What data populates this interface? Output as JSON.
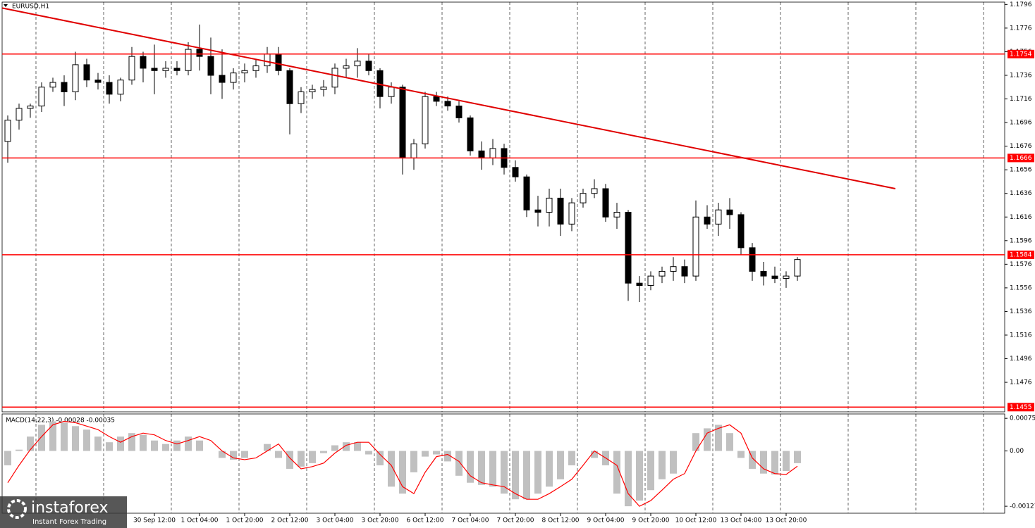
{
  "chart_data": [
    {
      "type": "candlestick",
      "title": "EURUSD,H1",
      "categories": [
        null,
        null,
        null,
        null,
        null,
        null,
        null,
        null,
        null,
        null,
        null,
        null,
        null,
        "30 Sep 12:00",
        null,
        null,
        null,
        "1 Oct 04:00",
        null,
        null,
        null,
        "1 Oct 20:00",
        null,
        null,
        null,
        "2 Oct 12:00",
        null,
        null,
        null,
        "3 Oct 04:00",
        null,
        null,
        null,
        "3 Oct 20:00",
        null,
        null,
        null,
        "6 Oct 12:00",
        null,
        null,
        null,
        "7 Oct 04:00",
        null,
        null,
        null,
        "7 Oct 20:00",
        null,
        null,
        null,
        "8 Oct 12:00",
        null,
        null,
        null,
        "9 Oct 04:00",
        null,
        null,
        null,
        "9 Oct 20:00",
        null,
        null,
        null,
        "10 Oct 12:00",
        null,
        null,
        null,
        "13 Oct 04:00",
        null,
        null,
        null,
        "13 Oct 20:00",
        null
      ],
      "ohlc": [
        [
          1.168,
          1.1702,
          1.1662,
          1.1698
        ],
        [
          1.1698,
          1.1712,
          1.169,
          1.1708
        ],
        [
          1.1708,
          1.1712,
          1.17,
          1.171
        ],
        [
          1.171,
          1.173,
          1.1705,
          1.1726
        ],
        [
          1.1726,
          1.1734,
          1.1722,
          1.173
        ],
        [
          1.173,
          1.1736,
          1.171,
          1.1722
        ],
        [
          1.1722,
          1.1756,
          1.1715,
          1.1745
        ],
        [
          1.1745,
          1.175,
          1.1726,
          1.1732
        ],
        [
          1.1732,
          1.1738,
          1.1724,
          1.173
        ],
        [
          1.173,
          1.1736,
          1.1712,
          1.172
        ],
        [
          1.172,
          1.1734,
          1.1714,
          1.1732
        ],
        [
          1.1732,
          1.176,
          1.1728,
          1.1752
        ],
        [
          1.1752,
          1.1756,
          1.173,
          1.1742
        ],
        [
          1.1742,
          1.1762,
          1.172,
          1.174
        ],
        [
          1.174,
          1.1748,
          1.1734,
          1.1742
        ],
        [
          1.1742,
          1.1748,
          1.1736,
          1.174
        ],
        [
          1.174,
          1.1764,
          1.1736,
          1.1758
        ],
        [
          1.1758,
          1.1779,
          1.174,
          1.1752
        ],
        [
          1.1752,
          1.1768,
          1.172,
          1.1736
        ],
        [
          1.1736,
          1.1758,
          1.1716,
          1.173
        ],
        [
          1.173,
          1.1742,
          1.1724,
          1.1738
        ],
        [
          1.1738,
          1.1746,
          1.173,
          1.174
        ],
        [
          1.174,
          1.175,
          1.1734,
          1.1744
        ],
        [
          1.1744,
          1.176,
          1.1738,
          1.1754
        ],
        [
          1.1754,
          1.176,
          1.1736,
          1.174
        ],
        [
          1.174,
          1.1742,
          1.1686,
          1.1712
        ],
        [
          1.1712,
          1.1726,
          1.1704,
          1.1722
        ],
        [
          1.1722,
          1.1728,
          1.1716,
          1.1724
        ],
        [
          1.1724,
          1.1732,
          1.1718,
          1.1726
        ],
        [
          1.1726,
          1.1746,
          1.172,
          1.1742
        ],
        [
          1.1742,
          1.175,
          1.1734,
          1.1744
        ],
        [
          1.1744,
          1.1759,
          1.1734,
          1.1748
        ],
        [
          1.1748,
          1.1754,
          1.1736,
          1.174
        ],
        [
          1.174,
          1.1742,
          1.1708,
          1.1718
        ],
        [
          1.1718,
          1.173,
          1.1712,
          1.1726
        ],
        [
          1.1726,
          1.1728,
          1.1652,
          1.1666
        ],
        [
          1.1666,
          1.1682,
          1.1656,
          1.1678
        ],
        [
          1.1678,
          1.1722,
          1.1674,
          1.1718
        ],
        [
          1.1718,
          1.1722,
          1.171,
          1.1714
        ],
        [
          1.1714,
          1.1718,
          1.1706,
          1.171
        ],
        [
          1.171,
          1.1714,
          1.1696,
          1.17
        ],
        [
          1.17,
          1.1702,
          1.1668,
          1.1672
        ],
        [
          1.1672,
          1.168,
          1.1656,
          1.1666
        ],
        [
          1.1666,
          1.1682,
          1.166,
          1.1674
        ],
        [
          1.1674,
          1.1678,
          1.1652,
          1.1658
        ],
        [
          1.1658,
          1.1664,
          1.1646,
          1.165
        ],
        [
          1.165,
          1.1652,
          1.1616,
          1.1622
        ],
        [
          1.1622,
          1.1634,
          1.1608,
          1.162
        ],
        [
          1.162,
          1.164,
          1.1608,
          1.1632
        ],
        [
          1.1632,
          1.164,
          1.16,
          1.161
        ],
        [
          1.161,
          1.1632,
          1.1604,
          1.1628
        ],
        [
          1.1628,
          1.164,
          1.1624,
          1.1636
        ],
        [
          1.1636,
          1.1648,
          1.1632,
          1.164
        ],
        [
          1.164,
          1.1644,
          1.1612,
          1.1616
        ],
        [
          1.1616,
          1.1628,
          1.1606,
          1.162
        ],
        [
          1.162,
          1.1622,
          1.1545,
          1.156
        ],
        [
          1.156,
          1.1566,
          1.1544,
          1.1558
        ],
        [
          1.1558,
          1.157,
          1.1554,
          1.1566
        ],
        [
          1.1566,
          1.1574,
          1.156,
          1.157
        ],
        [
          1.157,
          1.1582,
          1.1562,
          1.1574
        ],
        [
          1.1574,
          1.158,
          1.156,
          1.1566
        ],
        [
          1.1566,
          1.163,
          1.1562,
          1.1616
        ],
        [
          1.1616,
          1.1626,
          1.1606,
          1.161
        ],
        [
          1.161,
          1.1628,
          1.16,
          1.1622
        ],
        [
          1.1622,
          1.1632,
          1.1606,
          1.1618
        ],
        [
          1.1618,
          1.162,
          1.1584,
          1.159
        ],
        [
          1.159,
          1.1594,
          1.1562,
          1.157
        ],
        [
          1.157,
          1.1578,
          1.1558,
          1.1566
        ],
        [
          1.1566,
          1.1574,
          1.156,
          1.1564
        ],
        [
          1.1564,
          1.157,
          1.1556,
          1.1566
        ],
        [
          1.1566,
          1.1582,
          1.1562,
          1.158
        ]
      ],
      "ylim": [
        1.1451,
        1.1798
      ],
      "yticks": [
        1.1796,
        1.1776,
        1.1756,
        1.1736,
        1.1716,
        1.1696,
        1.1676,
        1.1656,
        1.1636,
        1.1616,
        1.1596,
        1.1576,
        1.1556,
        1.1536,
        1.1516,
        1.1496,
        1.1476
      ],
      "levels": [
        1.1754,
        1.1666,
        1.1584,
        1.1455
      ],
      "level_color": "#ff0000",
      "trendline": [
        1.1793,
        1.164
      ],
      "trendline_color": "#e00000"
    },
    {
      "type": "macd",
      "label": "MACD(14,22,3) -0.00028 -0.00035",
      "ylim": [
        -0.00143,
        0.00085
      ],
      "yticks": [
        0.00075,
        {
          "value": 0,
          "label": "0.00"
        },
        -0.00127
      ],
      "series": [
        {
          "color": "#c0c0c0",
          "values": [
            -0.00033,
            3e-05,
            0.00033,
            0.0006,
            0.00068,
            0.00065,
            0.00057,
            0.00049,
            0.00033,
            0.0002,
            0.00033,
            0.00041,
            0.00037,
            0.00024,
            0.00016,
            0.00024,
            0.00033,
            0.00024,
            0,
            -0.00016,
            -0.0002,
            -0.00016,
            0,
            0.00016,
            -0.00016,
            -0.00041,
            -0.00036,
            -0.00028,
            -5e-05,
            0.00013,
            0.0002,
            0.0002,
            -8e-05,
            -0.00033,
            -0.00082,
            -0.00098,
            -0.00049,
            -0.00013,
            -8e-05,
            -0.00024,
            -0.00057,
            -0.00073,
            -0.00078,
            -0.00082,
            -0.00098,
            -0.00111,
            -0.00111,
            -0.00098,
            -0.00082,
            -0.00065,
            -0.00033,
            0,
            -0.00016,
            -0.00033,
            -0.00098,
            -0.00127,
            -0.00114,
            -0.0009,
            -0.00065,
            -0.00052,
            0,
            0.00041,
            0.00052,
            0.0006,
            0.00041,
            -0.00016,
            -0.00041,
            -0.00052,
            -0.00054,
            -0.00046,
            -0.00028
          ]
        },
        {
          "color": "#ff0000",
          "values": [
            -0.00073,
            -0.00033,
            3e-05,
            0.00033,
            0.0006,
            0.00068,
            0.00065,
            0.00057,
            0.00049,
            0.00033,
            0.0002,
            0.00033,
            0.00041,
            0.00037,
            0.00024,
            0.00016,
            0.00024,
            0.00033,
            0.00024,
            0,
            -0.00016,
            -0.0002,
            -0.00016,
            0,
            0.00016,
            -0.00016,
            -0.00041,
            -0.00036,
            -0.00028,
            -5e-05,
            0.00013,
            0.0002,
            0.0002,
            -8e-05,
            -0.00033,
            -0.00082,
            -0.00098,
            -0.00049,
            -0.00013,
            -8e-05,
            -0.00024,
            -0.00057,
            -0.00073,
            -0.00078,
            -0.00082,
            -0.00098,
            -0.00111,
            -0.00111,
            -0.00098,
            -0.00082,
            -0.00065,
            -0.00033,
            0,
            -0.00016,
            -0.00033,
            -0.00098,
            -0.00127,
            -0.00114,
            -0.0009,
            -0.00065,
            -0.00052,
            0,
            0.00041,
            0.00052,
            0.0006,
            0.00041,
            -0.00016,
            -0.00041,
            -0.00052,
            -0.00054,
            -0.00035
          ]
        }
      ]
    }
  ],
  "logo": {
    "name": "instaforex",
    "tagline": "Instant Forex Trading"
  }
}
